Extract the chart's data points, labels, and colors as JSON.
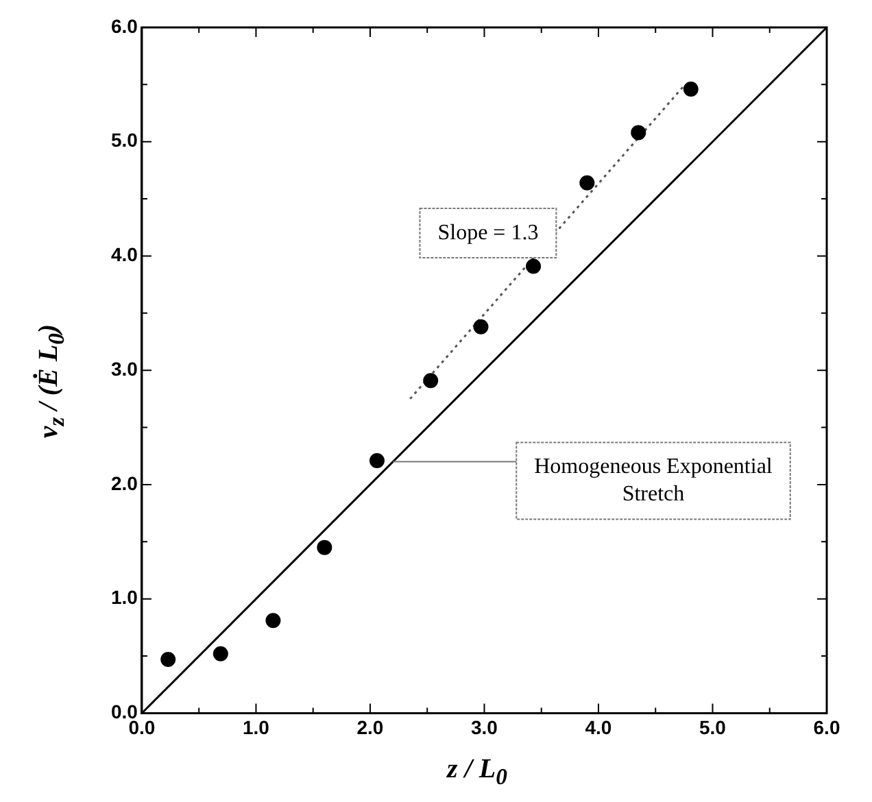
{
  "chart_data": {
    "type": "scatter",
    "xlabel": "z / L$_{0}$",
    "ylabel": "v$_{z}$ / (Ė L$_{0}$)",
    "xlim": [
      0,
      6
    ],
    "ylim": [
      0,
      6
    ],
    "xticks": [
      {
        "value": 0,
        "label": "0.0"
      },
      {
        "value": 0.5,
        "label": null
      },
      {
        "value": 1,
        "label": "1.0"
      },
      {
        "value": 1.5,
        "label": null
      },
      {
        "value": 2,
        "label": "2.0"
      },
      {
        "value": 2.5,
        "label": null
      },
      {
        "value": 3,
        "label": "3.0"
      },
      {
        "value": 3.5,
        "label": null
      },
      {
        "value": 4,
        "label": "4.0"
      },
      {
        "value": 4.5,
        "label": null
      },
      {
        "value": 5,
        "label": "5.0"
      },
      {
        "value": 5.5,
        "label": null
      },
      {
        "value": 6,
        "label": "6.0"
      }
    ],
    "yticks": [
      {
        "value": 0,
        "label": "0.0"
      },
      {
        "value": 0.5,
        "label": null
      },
      {
        "value": 1,
        "label": "1.0"
      },
      {
        "value": 1.5,
        "label": null
      },
      {
        "value": 2,
        "label": "2.0"
      },
      {
        "value": 2.5,
        "label": null
      },
      {
        "value": 3,
        "label": "3.0"
      },
      {
        "value": 3.5,
        "label": null
      },
      {
        "value": 4,
        "label": "4.0"
      },
      {
        "value": 4.5,
        "label": null
      },
      {
        "value": 5,
        "label": "5.0"
      },
      {
        "value": 5.5,
        "label": null
      },
      {
        "value": 6,
        "label": "6.0"
      }
    ],
    "grid": false,
    "legend": false,
    "series": [
      {
        "color": "#000000",
        "marker": "circle",
        "x": [
          0.23,
          0.69,
          1.15,
          1.6,
          2.06,
          2.53,
          2.97,
          3.43,
          3.9,
          4.35,
          4.81
        ],
        "values": [
          0.47,
          0.52,
          0.81,
          1.45,
          2.21,
          2.91,
          3.38,
          3.91,
          4.64,
          5.08,
          5.46
        ]
      },
      {
        "type": "line",
        "color": "#000000",
        "line_style": "solid",
        "marker": "none",
        "x": [
          0,
          6
        ],
        "values": [
          0,
          6
        ]
      },
      {
        "type": "line",
        "color": "#555555",
        "line_style": "dotted",
        "marker": "none",
        "x": [
          2.35,
          4.75
        ],
        "values": [
          2.75,
          5.49
        ]
      }
    ],
    "annotations": [
      "Slope = 1.3",
      {
        "text": "Homogeneous Exponential Stretch",
        "x": 2.2,
        "y": 2.2
      }
    ]
  }
}
